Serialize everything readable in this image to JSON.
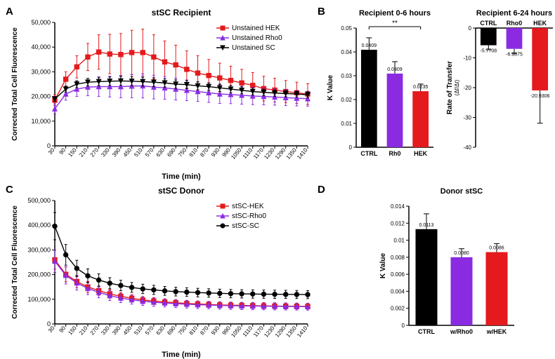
{
  "panels": {
    "A": {
      "label": "A",
      "title": "stSC Recipient"
    },
    "B": {
      "label": "B",
      "title_left": "Recipient 0-6 hours",
      "title_right": "Recipient 6-24 hours"
    },
    "C": {
      "label": "C",
      "title": "stSC Donor"
    },
    "D": {
      "label": "D",
      "title": "Donor stSC"
    }
  },
  "lineA": {
    "x_label": "Time (min)",
    "y_label": "Corrected Total Cell Fluorescence",
    "x_ticks": [
      30,
      90,
      150,
      210,
      270,
      330,
      390,
      450,
      510,
      570,
      630,
      690,
      750,
      810,
      870,
      930,
      990,
      1050,
      1110,
      1170,
      1230,
      1290,
      1350,
      1410
    ],
    "y_ticks": [
      0,
      10000,
      20000,
      30000,
      40000,
      50000
    ],
    "y_tick_labels": [
      "0",
      "10,000",
      "20,000",
      "30,000",
      "40,000",
      "50,000"
    ],
    "ylim": [
      0,
      50000
    ],
    "series": [
      {
        "name": "Unstained HEK",
        "color": "#e41a1c",
        "marker": "square",
        "y": [
          18500,
          27000,
          32000,
          36000,
          38000,
          37200,
          37000,
          37800,
          37800,
          36000,
          34000,
          32800,
          31000,
          29500,
          28500,
          27500,
          26500,
          25500,
          24500,
          23200,
          22600,
          22000,
          21500,
          21000
        ],
        "err": [
          2200,
          3000,
          4500,
          5500,
          7000,
          8000,
          8500,
          9000,
          9500,
          9000,
          8500,
          8000,
          7500,
          7000,
          6500,
          6000,
          5800,
          5500,
          5200,
          5000,
          4800,
          4500,
          4300,
          4200
        ]
      },
      {
        "name": "Unstained Rho0",
        "color": "#8a2be2",
        "marker": "triangle",
        "y": [
          15000,
          21000,
          23000,
          23800,
          24000,
          24000,
          24000,
          24200,
          24300,
          23800,
          23500,
          23000,
          22500,
          22000,
          21500,
          21000,
          20800,
          20500,
          20200,
          20000,
          19800,
          19500,
          19300,
          19100
        ],
        "err": [
          2000,
          2500,
          3000,
          3500,
          4000,
          4200,
          4500,
          4700,
          4900,
          4800,
          4600,
          4400,
          4200,
          4000,
          3900,
          3800,
          3700,
          3600,
          3500,
          3400,
          3300,
          3200,
          3100,
          3000
        ]
      },
      {
        "name": "Unstained SC",
        "color": "#000000",
        "marker": "triangle-down",
        "y": [
          19000,
          23000,
          25000,
          25800,
          26000,
          26200,
          26300,
          26200,
          26000,
          25800,
          25500,
          25000,
          24800,
          24300,
          24000,
          23500,
          23000,
          22500,
          22000,
          21700,
          21400,
          21200,
          21000,
          20700
        ],
        "err": [
          1000,
          1200,
          1400,
          1500,
          1600,
          1700,
          1800,
          1800,
          1800,
          1800,
          1700,
          1700,
          1600,
          1600,
          1500,
          1500,
          1500,
          1400,
          1400,
          1300,
          1300,
          1300,
          1200,
          1200
        ]
      }
    ]
  },
  "lineC": {
    "x_label": "Time (min)",
    "y_label": "Corrected Total Cell Fluorescence",
    "x_ticks": [
      30,
      90,
      150,
      210,
      270,
      330,
      390,
      450,
      510,
      570,
      630,
      690,
      750,
      810,
      870,
      930,
      990,
      1050,
      1110,
      1170,
      1230,
      1290,
      1350,
      1410
    ],
    "y_ticks": [
      0,
      100000,
      200000,
      300000,
      400000,
      500000
    ],
    "y_tick_labels": [
      "0",
      "100,000",
      "200,000",
      "300,000",
      "400,000",
      "500,000"
    ],
    "ylim": [
      0,
      500000
    ],
    "series": [
      {
        "name": "stSC-HEK",
        "color": "#e41a1c",
        "marker": "square",
        "y": [
          260000,
          201000,
          172000,
          150000,
          135000,
          122000,
          112000,
          104000,
          97000,
          93000,
          89000,
          86000,
          83000,
          81000,
          79000,
          77000,
          76000,
          75000,
          74000,
          73000,
          72500,
          72000,
          71500,
          71000
        ],
        "err": [
          38000,
          30000,
          25000,
          22000,
          19000,
          17000,
          16000,
          15000,
          14000,
          13500,
          13000,
          12800,
          12500,
          12300,
          12000,
          11800,
          11600,
          11500,
          11400,
          11300,
          11200,
          11100,
          11000,
          10900
        ]
      },
      {
        "name": "stSC-Rho0",
        "color": "#8a2be2",
        "marker": "triangle",
        "y": [
          254000,
          197000,
          166000,
          144000,
          128000,
          115000,
          105000,
          98000,
          92000,
          88000,
          85000,
          82000,
          80000,
          78000,
          76500,
          75000,
          74000,
          73000,
          72500,
          72000,
          71500,
          71000,
          70500,
          70000
        ],
        "err": [
          45000,
          35000,
          29000,
          25000,
          22000,
          20000,
          18500,
          17500,
          17000,
          16500,
          16000,
          15700,
          15500,
          15300,
          15100,
          15000,
          14900,
          14800,
          14700,
          14600,
          14500,
          14400,
          14300,
          14200
        ]
      },
      {
        "name": "stSC-SC",
        "color": "#000000",
        "marker": "circle",
        "y": [
          396000,
          280000,
          225000,
          195000,
          178000,
          165000,
          156000,
          148000,
          142000,
          138000,
          134000,
          131000,
          129000,
          127000,
          125500,
          124000,
          122800,
          122000,
          121300,
          120700,
          120200,
          119800,
          119400,
          119000
        ],
        "err": [
          55000,
          42000,
          33000,
          28000,
          25000,
          22500,
          21000,
          20000,
          19000,
          18500,
          18000,
          17700,
          17500,
          17300,
          17100,
          17000,
          16900,
          16800,
          16700,
          16600,
          16500,
          16400,
          16300,
          16200
        ]
      }
    ]
  },
  "barB_left": {
    "y_label": "K Value",
    "y_ticks": [
      0.0,
      0.01,
      0.02,
      0.03,
      0.04,
      0.05
    ],
    "ylim": [
      0,
      0.05
    ],
    "categories": [
      "CTRL",
      "Rh0",
      "HEK"
    ],
    "bars": [
      {
        "value": 0.0409,
        "err": 0.005,
        "color": "#000000",
        "label": "0.0409"
      },
      {
        "value": 0.0309,
        "err": 0.005,
        "color": "#8a2be2",
        "label": "0.0309"
      },
      {
        "value": 0.0235,
        "err": 0.003,
        "color": "#e41a1c",
        "label": "0.0235"
      }
    ],
    "sig": {
      "from": 0,
      "to": 2,
      "text": "**"
    }
  },
  "barB_right": {
    "y_label": "Rate of Transfer",
    "y_label_sub": "(Δf/Δt)",
    "y_ticks": [
      -40,
      -30,
      -20,
      -10,
      0
    ],
    "ylim": [
      -40,
      0
    ],
    "categories": [
      "CTRL",
      "Rho0",
      "HEK"
    ],
    "bars": [
      {
        "value": -5.7708,
        "err": 1.5,
        "color": "#000000",
        "label": "-5.7708"
      },
      {
        "value": -6.9875,
        "err": 1.5,
        "color": "#8a2be2",
        "label": "-6.9875"
      },
      {
        "value": -20.9306,
        "err": 11,
        "color": "#e41a1c",
        "label": "-20.9306"
      }
    ]
  },
  "barD": {
    "y_label": "K Value",
    "y_ticks": [
      0.0,
      0.002,
      0.004,
      0.006,
      0.008,
      0.01,
      0.012,
      0.014
    ],
    "ylim": [
      0,
      0.014
    ],
    "categories": [
      "CTRL",
      "w/Rho0",
      "w/HEK"
    ],
    "bars": [
      {
        "value": 0.0113,
        "err": 0.0018,
        "color": "#000000",
        "label": "0.0113"
      },
      {
        "value": 0.008,
        "err": 0.001,
        "color": "#8a2be2",
        "label": "0.0080"
      },
      {
        "value": 0.0086,
        "err": 0.001,
        "color": "#e41a1c",
        "label": "0.0086"
      }
    ]
  },
  "style": {
    "bg": "#ffffff",
    "axis_color": "#000000",
    "line_width": 1.4,
    "err_width": 1,
    "marker_size": 3.2,
    "bar_width": 0.62
  }
}
